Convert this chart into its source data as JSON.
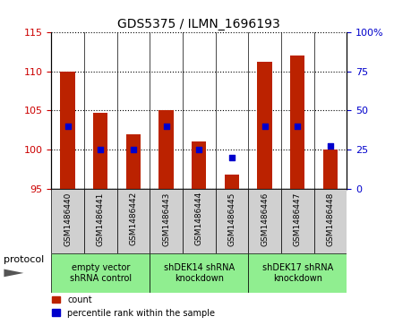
{
  "title": "GDS5375 / ILMN_1696193",
  "samples": [
    "GSM1486440",
    "GSM1486441",
    "GSM1486442",
    "GSM1486443",
    "GSM1486444",
    "GSM1486445",
    "GSM1486446",
    "GSM1486447",
    "GSM1486448"
  ],
  "counts": [
    110.0,
    104.7,
    102.0,
    105.0,
    101.0,
    96.8,
    111.3,
    112.0,
    100.0
  ],
  "percentiles": [
    40.0,
    25.0,
    25.0,
    40.0,
    25.0,
    20.0,
    40.0,
    40.0,
    27.0
  ],
  "bar_bottom": 95,
  "ylim_left": [
    95,
    115
  ],
  "ylim_right": [
    0,
    100
  ],
  "yticks_left": [
    95,
    100,
    105,
    110,
    115
  ],
  "yticks_right": [
    0,
    25,
    50,
    75,
    100
  ],
  "yticklabels_right": [
    "0",
    "25",
    "50",
    "75",
    "100%"
  ],
  "bar_color": "#bb2200",
  "dot_color": "#0000cc",
  "dot_size": 25,
  "groups": [
    {
      "label": "empty vector\nshRNA control",
      "start": 0,
      "end": 3,
      "color": "#90EE90"
    },
    {
      "label": "shDEK14 shRNA\nknockdown",
      "start": 3,
      "end": 6,
      "color": "#90EE90"
    },
    {
      "label": "shDEK17 shRNA\nknockdown",
      "start": 6,
      "end": 9,
      "color": "#90EE90"
    }
  ],
  "protocol_label": "protocol",
  "legend_count_label": "count",
  "legend_percentile_label": "percentile rank within the sample",
  "bar_width": 0.45,
  "background_color": "#ffffff",
  "tick_label_color_left": "#cc0000",
  "tick_label_color_right": "#0000cc",
  "sample_box_color": "#d0d0d0",
  "plot_bg_color": "#ffffff"
}
